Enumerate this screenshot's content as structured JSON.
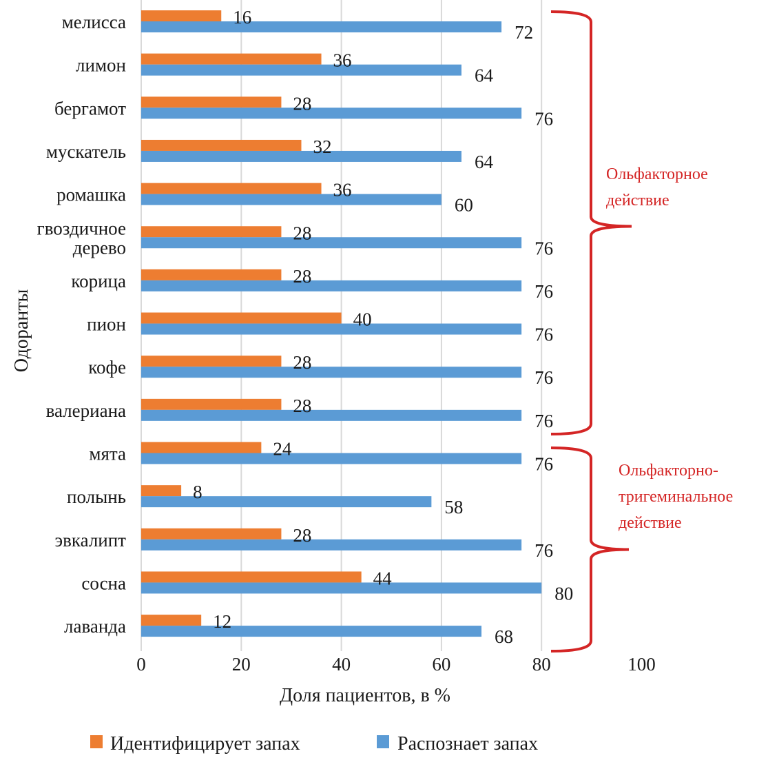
{
  "chart_data": {
    "type": "bar",
    "orientation": "horizontal",
    "title": "",
    "xlabel": "Доля пациентов, в %",
    "ylabel": "Одоранты",
    "xlim": [
      0,
      100
    ],
    "xticks": [
      0,
      20,
      40,
      60,
      80,
      100
    ],
    "grid": true,
    "legend_position": "bottom",
    "categories": [
      [
        "мелисса"
      ],
      [
        "лимон"
      ],
      [
        "бергамот"
      ],
      [
        "мускатель"
      ],
      [
        "ромашка"
      ],
      [
        "гвоздичное",
        "дерево"
      ],
      [
        "корица"
      ],
      [
        "пион"
      ],
      [
        "кофе"
      ],
      [
        "валериана"
      ],
      [
        "мята"
      ],
      [
        "полынь"
      ],
      [
        "эвкалипт"
      ],
      [
        "сосна"
      ],
      [
        "лаванда"
      ]
    ],
    "series": [
      {
        "name": "Идентифицирует запах",
        "color": "#ed7d31",
        "values": [
          16,
          36,
          28,
          32,
          36,
          28,
          28,
          40,
          28,
          28,
          24,
          8,
          28,
          44,
          12
        ]
      },
      {
        "name": "Распознает запах",
        "color": "#5b9bd5",
        "values": [
          72,
          64,
          76,
          64,
          60,
          76,
          76,
          76,
          76,
          76,
          76,
          58,
          76,
          80,
          68
        ]
      }
    ],
    "annotations": [
      {
        "type": "brace",
        "from_category": 0,
        "to_category": 9,
        "text": [
          "Ольфакторное",
          "действие"
        ],
        "color": "#d42525"
      },
      {
        "type": "brace",
        "from_category": 10,
        "to_category": 14,
        "text": [
          "Ольфакторно-",
          "тригеминальное",
          "действие"
        ],
        "color": "#d42525"
      }
    ]
  }
}
